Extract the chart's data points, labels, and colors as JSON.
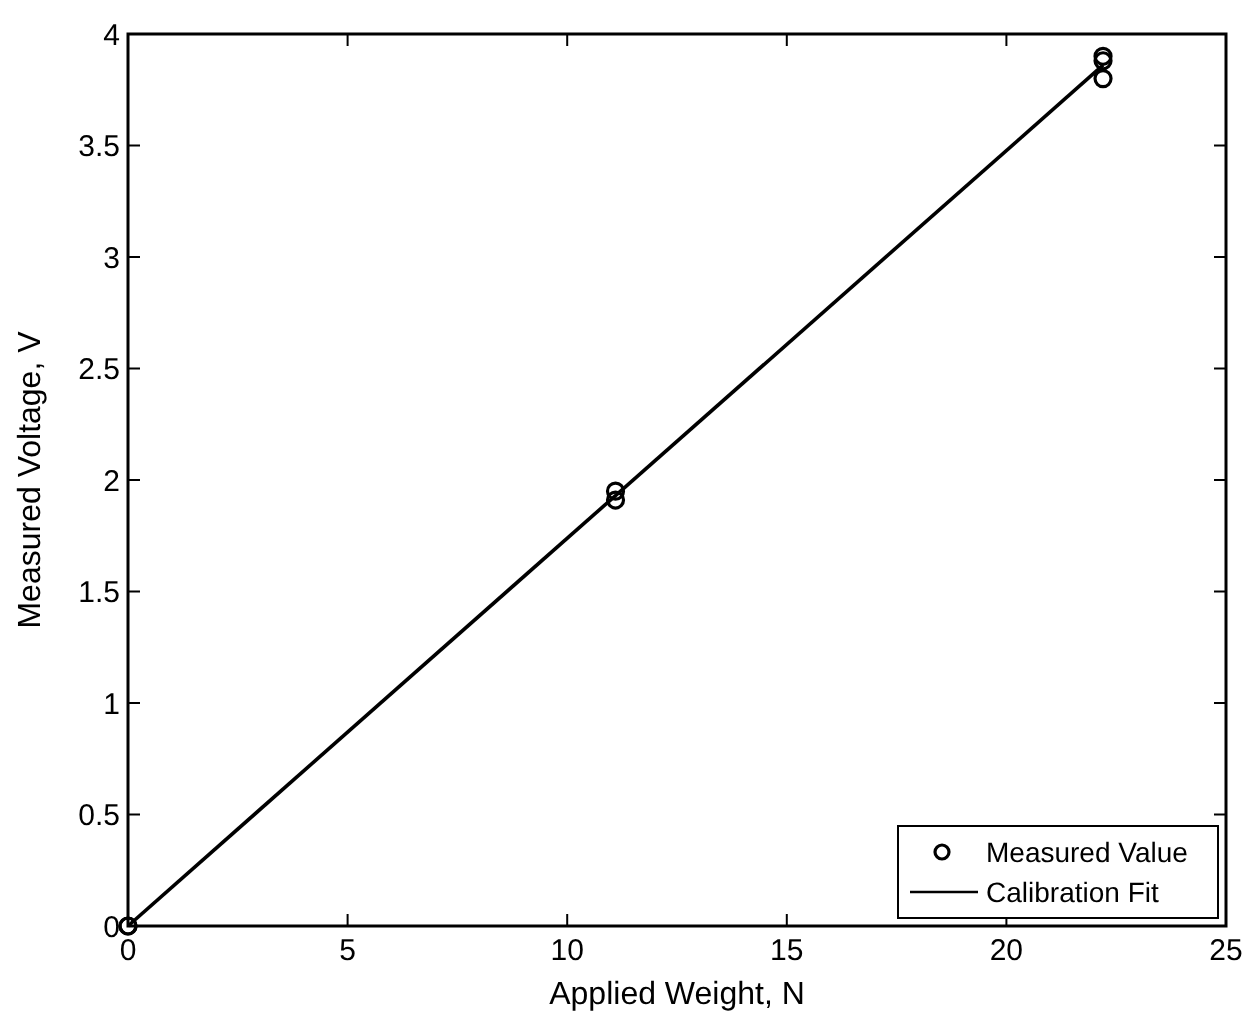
{
  "chart_data": {
    "type": "scatter",
    "xlabel": "Applied Weight, N",
    "ylabel": "Measured Voltage, V",
    "xlim": [
      0,
      25
    ],
    "xticks": [
      0,
      5,
      10,
      15,
      20,
      25
    ],
    "ylim": [
      0,
      4
    ],
    "yticks": [
      0,
      0.5,
      1,
      1.5,
      2,
      2.5,
      3,
      3.5,
      4
    ],
    "series": [
      {
        "name": "Measured Value",
        "color": "#000000",
        "marker": "circle",
        "x": [
          0,
          0,
          11.1,
          11.1,
          22.2,
          22.2,
          22.2
        ],
        "values": [
          0,
          0,
          1.95,
          1.91,
          3.9,
          3.88,
          3.8
        ]
      },
      {
        "name": "Calibration Fit",
        "type": "line",
        "color": "#000000",
        "marker": "none",
        "line_style": "solid",
        "x": [
          0,
          22.2
        ],
        "values": [
          0,
          3.86
        ]
      }
    ],
    "grid": false,
    "legend": "bottom right"
  }
}
